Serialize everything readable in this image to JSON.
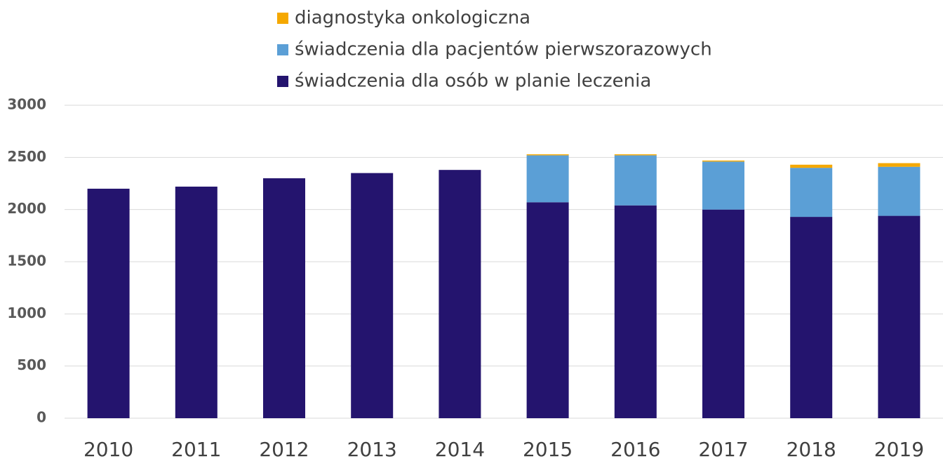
{
  "chart_data": {
    "type": "stacked_bar",
    "categories": [
      "2010",
      "2011",
      "2012",
      "2013",
      "2014",
      "2015",
      "2016",
      "2017",
      "2018",
      "2019"
    ],
    "series": [
      {
        "name": "świadczenia dla osób w planie leczenia",
        "color": "#24146e",
        "values": [
          2200,
          2220,
          2300,
          2350,
          2380,
          2070,
          2040,
          2000,
          1930,
          1940
        ]
      },
      {
        "name": "świadczenia dla pacjentów pierwszorazowych",
        "color": "#5b9fd6",
        "values": [
          null,
          null,
          null,
          null,
          null,
          450,
          480,
          460,
          470,
          470
        ]
      },
      {
        "name": "diagnostyka onkologiczna",
        "color": "#f5a800",
        "values": [
          null,
          null,
          null,
          null,
          null,
          10,
          10,
          10,
          30,
          35
        ]
      }
    ],
    "ylim": [
      0,
      3000
    ],
    "yticks": [
      0,
      500,
      1000,
      1500,
      2000,
      2500,
      3000
    ],
    "grid": true,
    "legend": "top"
  }
}
